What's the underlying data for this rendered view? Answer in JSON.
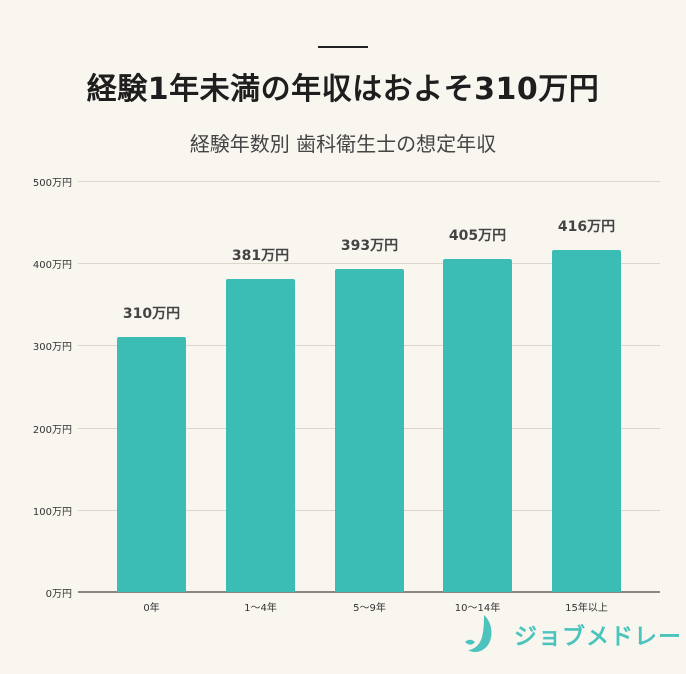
{
  "header": {
    "title": "経験1年未満の年収はおよそ310万円",
    "subtitle": "経験年数別 歯科衛生士の想定年収"
  },
  "colors": {
    "background": "#f9f6f0",
    "bar": "#3bbdb6",
    "brand": "#4cc4bd",
    "text": "#222222"
  },
  "brand": {
    "name": "ジョブメドレー",
    "icon": "jobmedley-logo-icon"
  },
  "chart_data": {
    "type": "bar",
    "title": "経験年数別 歯科衛生士の想定年収",
    "xlabel": "",
    "ylabel": "",
    "categories": [
      "0年",
      "1〜4年",
      "5〜9年",
      "10〜14年",
      "15年以上"
    ],
    "values": [
      310,
      381,
      393,
      405,
      416
    ],
    "value_labels": [
      "310万円",
      "381万円",
      "393万円",
      "405万円",
      "416万円"
    ],
    "unit": "万円",
    "ylim": [
      0,
      500
    ],
    "yticks": [
      0,
      100,
      200,
      300,
      400,
      500
    ],
    "ytick_labels": [
      "0万円",
      "100万円",
      "200万円",
      "300万円",
      "400万円",
      "500万円"
    ],
    "grid": true,
    "legend": null
  }
}
